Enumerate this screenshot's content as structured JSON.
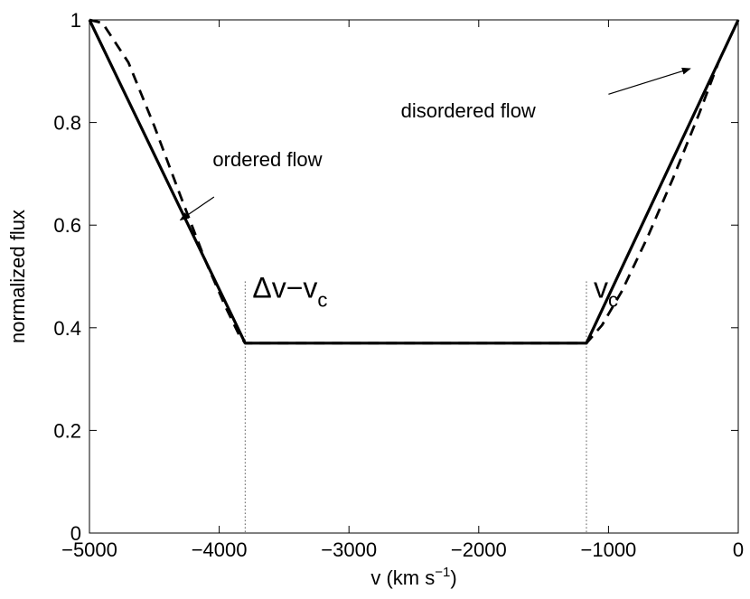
{
  "chart_data": {
    "type": "line",
    "xlabel_main": "v (km s",
    "xlabel_sup": "−1",
    "xlabel_close": ")",
    "ylabel": "normalized flux",
    "xlim": [
      -5000,
      0
    ],
    "ylim": [
      0,
      1
    ],
    "x_ticks": [
      -5000,
      -4000,
      -3000,
      -2000,
      -1000,
      0
    ],
    "x_tick_labels": [
      "−5000",
      "−4000",
      "−3000",
      "−2000",
      "−1000",
      "0"
    ],
    "y_ticks": [
      0,
      0.2,
      0.4,
      0.6,
      0.8,
      1
    ],
    "y_tick_labels": [
      "0",
      "0.2",
      "0.4",
      "0.6",
      "0.8",
      "1"
    ],
    "grid": false,
    "series": [
      {
        "style": "solid",
        "x": [
          -5000,
          -3800,
          -1170,
          0
        ],
        "y": [
          1,
          0.37,
          0.37,
          1
        ]
      },
      {
        "style": "dashed",
        "x": [
          -5000,
          -4900,
          -4700,
          -4500,
          -4300,
          -4100,
          -3950,
          -3850,
          -3800,
          -3550,
          -3300,
          -3000,
          -2700,
          -2400,
          -2100,
          -1800,
          -1500,
          -1170,
          -1050,
          -900,
          -700,
          -500,
          -300,
          -150,
          0
        ],
        "y": [
          1.0,
          0.994,
          0.917,
          0.793,
          0.658,
          0.527,
          0.44,
          0.388,
          0.37,
          0.37,
          0.37,
          0.37,
          0.37,
          0.37,
          0.37,
          0.37,
          0.37,
          0.37,
          0.405,
          0.47,
          0.576,
          0.693,
          0.818,
          0.919,
          1.0
        ]
      }
    ],
    "vlines": [
      {
        "x": -3800,
        "y_top": 0.49,
        "label": "Δv−v",
        "sub": "c"
      },
      {
        "x": -1170,
        "y_top": 0.49,
        "label": "v",
        "sub": "c"
      }
    ],
    "annotations": [
      {
        "text": "ordered flow",
        "text_x": -4050,
        "text_y": 0.715,
        "arrow_from": [
          -4040,
          0.655
        ],
        "arrow_to": [
          -4300,
          0.61
        ]
      },
      {
        "text": "disordered flow",
        "text_x": -2600,
        "text_y": 0.81,
        "arrow_from": [
          -1000,
          0.855
        ],
        "arrow_to": [
          -370,
          0.905
        ]
      }
    ]
  }
}
